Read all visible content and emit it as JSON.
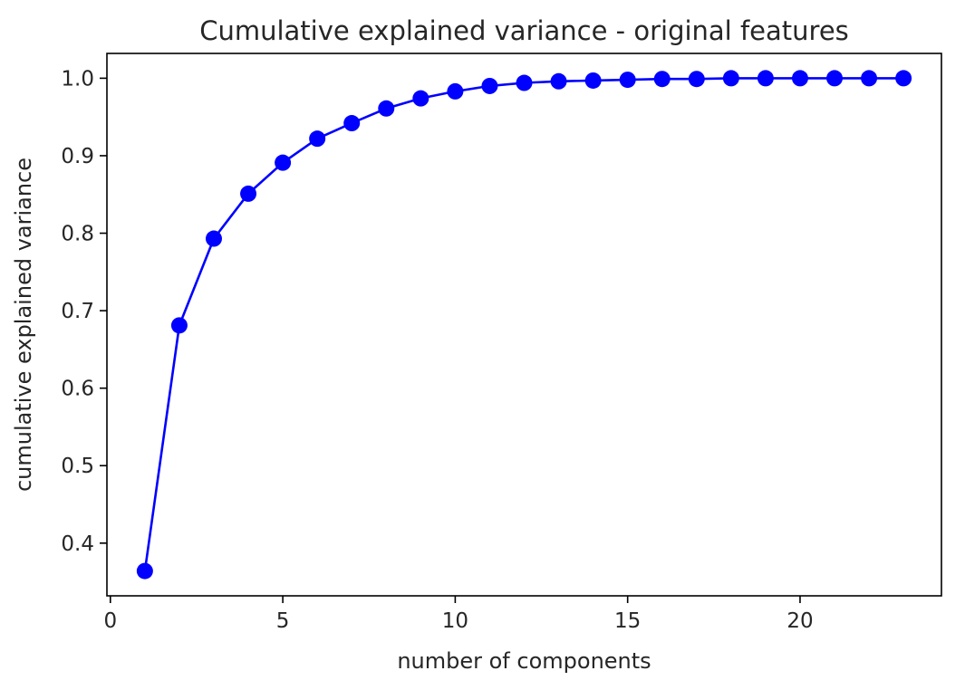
{
  "chart_data": {
    "type": "line",
    "title": "Cumulative explained variance - original features",
    "xlabel": "number of components",
    "ylabel": "cumulative explained variance",
    "xlim": [
      -0.1,
      24.1
    ],
    "ylim": [
      0.332,
      1.032
    ],
    "xticks": [
      0,
      5,
      10,
      15,
      20
    ],
    "xtick_labels": [
      "0",
      "5",
      "10",
      "15",
      "20"
    ],
    "yticks": [
      0.4,
      0.5,
      0.6,
      0.7,
      0.8,
      0.9,
      1.0
    ],
    "ytick_labels": [
      "0.4",
      "0.5",
      "0.6",
      "0.7",
      "0.8",
      "0.9",
      "1.0"
    ],
    "grid": false,
    "series": [
      {
        "color": "#0000ff",
        "marker": "circle",
        "x": [
          1,
          2,
          3,
          4,
          5,
          6,
          7,
          8,
          9,
          10,
          11,
          12,
          13,
          14,
          15,
          16,
          17,
          18,
          19,
          20,
          21,
          22,
          23
        ],
        "y": [
          0.364,
          0.681,
          0.793,
          0.851,
          0.891,
          0.922,
          0.942,
          0.961,
          0.974,
          0.983,
          0.99,
          0.994,
          0.996,
          0.997,
          0.998,
          0.999,
          0.999,
          1.0,
          1.0,
          1.0,
          1.0,
          1.0,
          1.0
        ]
      }
    ]
  }
}
